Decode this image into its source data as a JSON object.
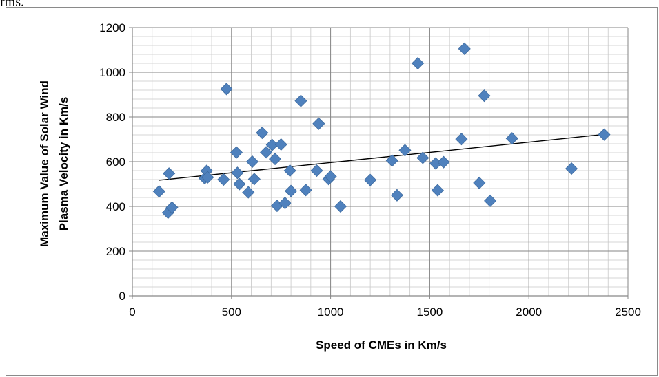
{
  "page": {
    "caption": "rms."
  },
  "chart_data": {
    "type": "scatter",
    "title": "",
    "xlabel": "Speed of CMEs in Km/s",
    "ylabel_lines": [
      "Maximum Value of Solar Wind",
      "Plasma Velocity in Km/s"
    ],
    "xlim": [
      0,
      2500
    ],
    "ylim": [
      0,
      1200
    ],
    "x_major": 500,
    "y_major": 200,
    "x_minor": 100,
    "y_minor": 40,
    "x_ticks": [
      "0",
      "500",
      "1000",
      "1500",
      "2000",
      "2500"
    ],
    "y_ticks": [
      "0",
      "200",
      "400",
      "600",
      "800",
      "1000",
      "1200"
    ],
    "grid": true,
    "marker_color": "#4f81bd",
    "marker_stroke": "#3d6a9e",
    "trendline": {
      "x": [
        135,
        2380
      ],
      "y": [
        517,
        722
      ]
    },
    "points": [
      [
        135,
        467
      ],
      [
        180,
        372
      ],
      [
        185,
        547
      ],
      [
        200,
        395
      ],
      [
        365,
        526
      ],
      [
        375,
        559
      ],
      [
        380,
        530
      ],
      [
        460,
        520
      ],
      [
        475,
        925
      ],
      [
        525,
        641
      ],
      [
        530,
        550
      ],
      [
        540,
        500
      ],
      [
        585,
        463
      ],
      [
        605,
        600
      ],
      [
        615,
        522
      ],
      [
        655,
        729
      ],
      [
        675,
        642
      ],
      [
        705,
        675
      ],
      [
        720,
        612
      ],
      [
        730,
        403
      ],
      [
        750,
        677
      ],
      [
        770,
        415
      ],
      [
        795,
        560
      ],
      [
        800,
        469
      ],
      [
        850,
        872
      ],
      [
        875,
        473
      ],
      [
        930,
        560
      ],
      [
        940,
        770
      ],
      [
        990,
        522
      ],
      [
        1000,
        534
      ],
      [
        1050,
        400
      ],
      [
        1200,
        518
      ],
      [
        1310,
        605
      ],
      [
        1335,
        450
      ],
      [
        1375,
        651
      ],
      [
        1440,
        1040
      ],
      [
        1465,
        617
      ],
      [
        1530,
        592
      ],
      [
        1540,
        472
      ],
      [
        1570,
        598
      ],
      [
        1660,
        701
      ],
      [
        1675,
        1105
      ],
      [
        1750,
        505
      ],
      [
        1775,
        895
      ],
      [
        1805,
        425
      ],
      [
        1915,
        704
      ],
      [
        2215,
        569
      ],
      [
        2380,
        721
      ]
    ]
  }
}
